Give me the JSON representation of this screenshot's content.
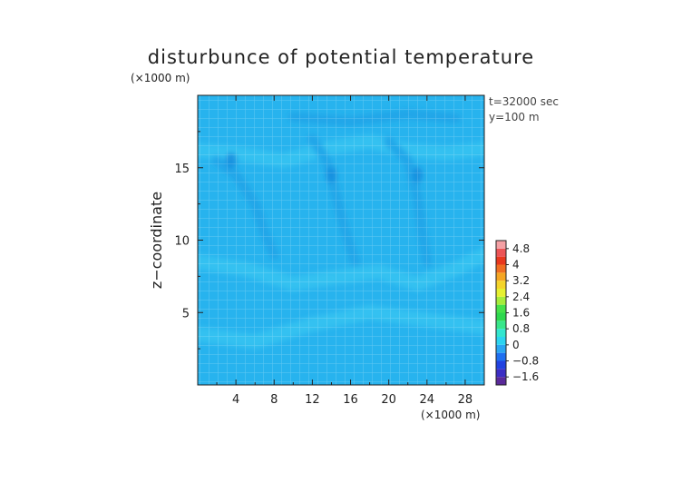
{
  "chart_data": {
    "type": "heatmap",
    "title": "disturbunce of potential temperature",
    "y_unit_label": "(×1000 m)",
    "x_unit_label": "(×1000 m)",
    "ylabel": "z−coordinate",
    "xlabel": "",
    "annotations": [
      "t=32000 sec",
      "y=100 m"
    ],
    "xlim": [
      0,
      30
    ],
    "ylim": [
      0,
      20
    ],
    "x_ticks": [
      4,
      8,
      12,
      16,
      20,
      24,
      28
    ],
    "y_ticks": [
      5,
      10,
      15
    ],
    "colorbar": {
      "levels": [
        -2.0,
        -1.6,
        -1.2,
        -0.8,
        -0.4,
        0,
        0.4,
        0.8,
        1.2,
        1.6,
        2.0,
        2.4,
        2.8,
        3.2,
        3.6,
        4.0,
        4.4,
        4.8,
        5.2
      ],
      "colors": [
        "#5a2a9a",
        "#3c2ec4",
        "#2142e0",
        "#1f6ff0",
        "#2aa6f2",
        "#2cd4f0",
        "#33e6cf",
        "#38e68a",
        "#2ed84e",
        "#46e24a",
        "#a6ec3a",
        "#e6f030",
        "#f4d42a",
        "#f5a623",
        "#f06e22",
        "#e8381e",
        "#ec5456",
        "#f4a0a4"
      ],
      "labels": [
        "4.8",
        "4",
        "3.2",
        "2.4",
        "1.6",
        "0.8",
        "0",
        "−0.8",
        "−1.6"
      ],
      "label_values": [
        4.8,
        4.0,
        3.2,
        2.4,
        1.6,
        0.8,
        0,
        -0.8,
        -1.6
      ]
    },
    "field": {
      "background_value": -0.2,
      "colors": {
        "background": "#27b3ee",
        "slightly_warm": "#36c3f1",
        "cool": "#1ea3e8",
        "coolest": "#1a8fdf"
      },
      "features": [
        {
          "kind": "warm_band",
          "value": 0.1,
          "points": [
            [
              0,
              3.5
            ],
            [
              6,
              3
            ],
            [
              12,
              4.2
            ],
            [
              18,
              5
            ],
            [
              24,
              4.5
            ],
            [
              30,
              4
            ]
          ]
        },
        {
          "kind": "warm_band",
          "value": 0.1,
          "points": [
            [
              0,
              8.5
            ],
            [
              5,
              8
            ],
            [
              10,
              7
            ],
            [
              14,
              7.4
            ],
            [
              19,
              7.8
            ],
            [
              23,
              7
            ],
            [
              27,
              8
            ],
            [
              30,
              9
            ]
          ]
        },
        {
          "kind": "warm_band",
          "value": 0.1,
          "points": [
            [
              0,
              16.2
            ],
            [
              4,
              16
            ],
            [
              9,
              15.5
            ],
            [
              14,
              16.4
            ],
            [
              18,
              16.8
            ],
            [
              22,
              16.2
            ],
            [
              26,
              16
            ],
            [
              30,
              16.3
            ]
          ]
        },
        {
          "kind": "cool_band",
          "value": -0.4,
          "points": [
            [
              2,
              15.5
            ],
            [
              4,
              14.5
            ],
            [
              6,
              12.5
            ],
            [
              7,
              10.5
            ],
            [
              8,
              9
            ]
          ]
        },
        {
          "kind": "cool_band",
          "value": -0.4,
          "points": [
            [
              12,
              17
            ],
            [
              13.5,
              15.5
            ],
            [
              14.5,
              13
            ],
            [
              15.5,
              10.5
            ],
            [
              16.5,
              8.5
            ]
          ]
        },
        {
          "kind": "cool_band",
          "value": -0.4,
          "points": [
            [
              20,
              16.8
            ],
            [
              22,
              15.5
            ],
            [
              23,
              13
            ],
            [
              23.5,
              10.5
            ],
            [
              24,
              8.5
            ]
          ]
        },
        {
          "kind": "cool_band",
          "value": -0.4,
          "points": [
            [
              10,
              18.5
            ],
            [
              16,
              18.2
            ],
            [
              22,
              18.7
            ],
            [
              27,
              18.4
            ]
          ]
        },
        {
          "kind": "cool_spot",
          "value": -0.6,
          "x": 14,
          "y": 14.5
        },
        {
          "kind": "cool_spot",
          "value": -0.6,
          "x": 23,
          "y": 14.5
        },
        {
          "kind": "cool_spot",
          "value": -0.6,
          "x": 3.5,
          "y": 15.5
        },
        {
          "kind": "warm_spot",
          "value": 0.3,
          "x": 23.5,
          "y": 7.2
        },
        {
          "kind": "warm_spot",
          "value": 0.1,
          "x": 13.5,
          "y": 7.3
        }
      ]
    }
  }
}
